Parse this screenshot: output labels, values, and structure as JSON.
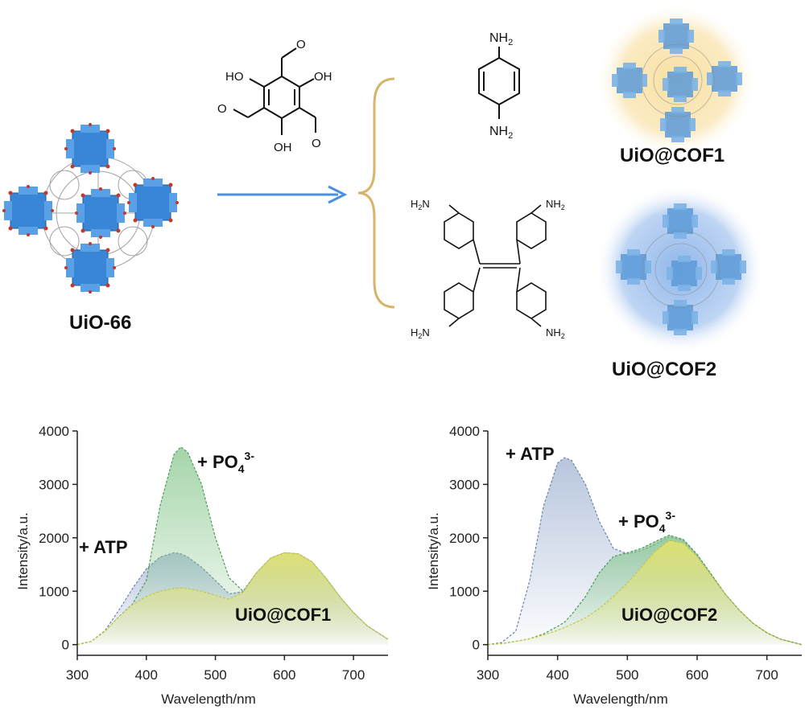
{
  "scheme": {
    "mof_label": "UiO-66",
    "product1_label": "UiO@COF1",
    "product2_label": "UiO@COF2",
    "aldehyde": {
      "hydroxyl": "HO",
      "hydroxyl_r": "OH",
      "carbonyl": "O"
    },
    "pda": {
      "top": "NH",
      "bottom": "NH",
      "sub": "2"
    },
    "etta": {
      "tl": "H",
      "tr": "NH",
      "bl": "H",
      "br": "NH",
      "n": "N",
      "sub": "2"
    }
  },
  "chart_data": [
    {
      "type": "area",
      "xlabel": "Wavelength/nm",
      "ylabel": "Intensity/a.u.",
      "xlim": [
        300,
        750
      ],
      "ylim": [
        -200,
        4000
      ],
      "xticks": [
        "300",
        "400",
        "500",
        "600",
        "700"
      ],
      "yticks": [
        "0",
        "1000",
        "2000",
        "3000",
        "4000"
      ],
      "x": [
        300,
        320,
        340,
        360,
        380,
        400,
        420,
        440,
        450,
        460,
        480,
        500,
        520,
        540,
        560,
        580,
        600,
        620,
        640,
        660,
        680,
        700,
        720,
        750
      ],
      "series": [
        {
          "name": "UiO@COF1",
          "color": "#e8e46a",
          "values": [
            0,
            60,
            250,
            520,
            750,
            900,
            1000,
            1050,
            1060,
            1050,
            1000,
            920,
            850,
            980,
            1350,
            1620,
            1720,
            1700,
            1550,
            1250,
            900,
            600,
            350,
            100
          ]
        },
        {
          "name": "+ ATP",
          "color": "#9aaed0",
          "values": [
            0,
            60,
            260,
            640,
            1050,
            1420,
            1640,
            1720,
            1700,
            1640,
            1450,
            1200,
            950,
            990,
            1350,
            1620,
            1720,
            1700,
            1550,
            1250,
            900,
            600,
            350,
            100
          ]
        },
        {
          "name": "+ PO43-",
          "color": "#80c486",
          "values": [
            0,
            60,
            250,
            520,
            760,
            1200,
            2600,
            3560,
            3700,
            3600,
            3000,
            2000,
            1250,
            1000,
            1350,
            1620,
            1720,
            1700,
            1550,
            1250,
            900,
            600,
            350,
            100
          ]
        }
      ],
      "annotations": [
        {
          "text": "+ ATP"
        },
        {
          "text": "+ PO",
          "sub": "4",
          "sup": "3-"
        },
        {
          "text": "UiO@COF1"
        }
      ]
    },
    {
      "type": "area",
      "xlabel": "Wavelength/nm",
      "ylabel": "Intensity/a.u.",
      "xlim": [
        300,
        750
      ],
      "ylim": [
        -200,
        4000
      ],
      "xticks": [
        "300",
        "400",
        "500",
        "600",
        "700"
      ],
      "yticks": [
        "0",
        "1000",
        "2000",
        "3000",
        "4000"
      ],
      "x": [
        300,
        320,
        340,
        360,
        380,
        400,
        410,
        420,
        440,
        460,
        480,
        500,
        520,
        540,
        560,
        580,
        600,
        620,
        640,
        660,
        680,
        700,
        720,
        750
      ],
      "series": [
        {
          "name": "UiO@COF2",
          "color": "#e8e46a",
          "values": [
            0,
            20,
            60,
            110,
            180,
            270,
            320,
            380,
            500,
            680,
            900,
            1150,
            1450,
            1750,
            1950,
            1900,
            1650,
            1300,
            950,
            650,
            400,
            220,
            100,
            0
          ]
        },
        {
          "name": "+ ATP",
          "color": "#9aaed0",
          "values": [
            0,
            40,
            250,
            1200,
            2600,
            3400,
            3500,
            3450,
            3000,
            2300,
            1800,
            1700,
            1760,
            1880,
            2020,
            1950,
            1680,
            1320,
            950,
            650,
            400,
            220,
            100,
            0
          ]
        },
        {
          "name": "+ PO43-",
          "color": "#80c486",
          "values": [
            0,
            20,
            60,
            110,
            200,
            340,
            420,
            560,
            900,
            1350,
            1650,
            1720,
            1800,
            1930,
            2050,
            1970,
            1690,
            1320,
            950,
            650,
            400,
            220,
            100,
            0
          ]
        }
      ],
      "annotations": [
        {
          "text": "+ ATP"
        },
        {
          "text": "+ PO",
          "sub": "4",
          "sup": "3-"
        },
        {
          "text": "UiO@COF2"
        }
      ]
    }
  ]
}
